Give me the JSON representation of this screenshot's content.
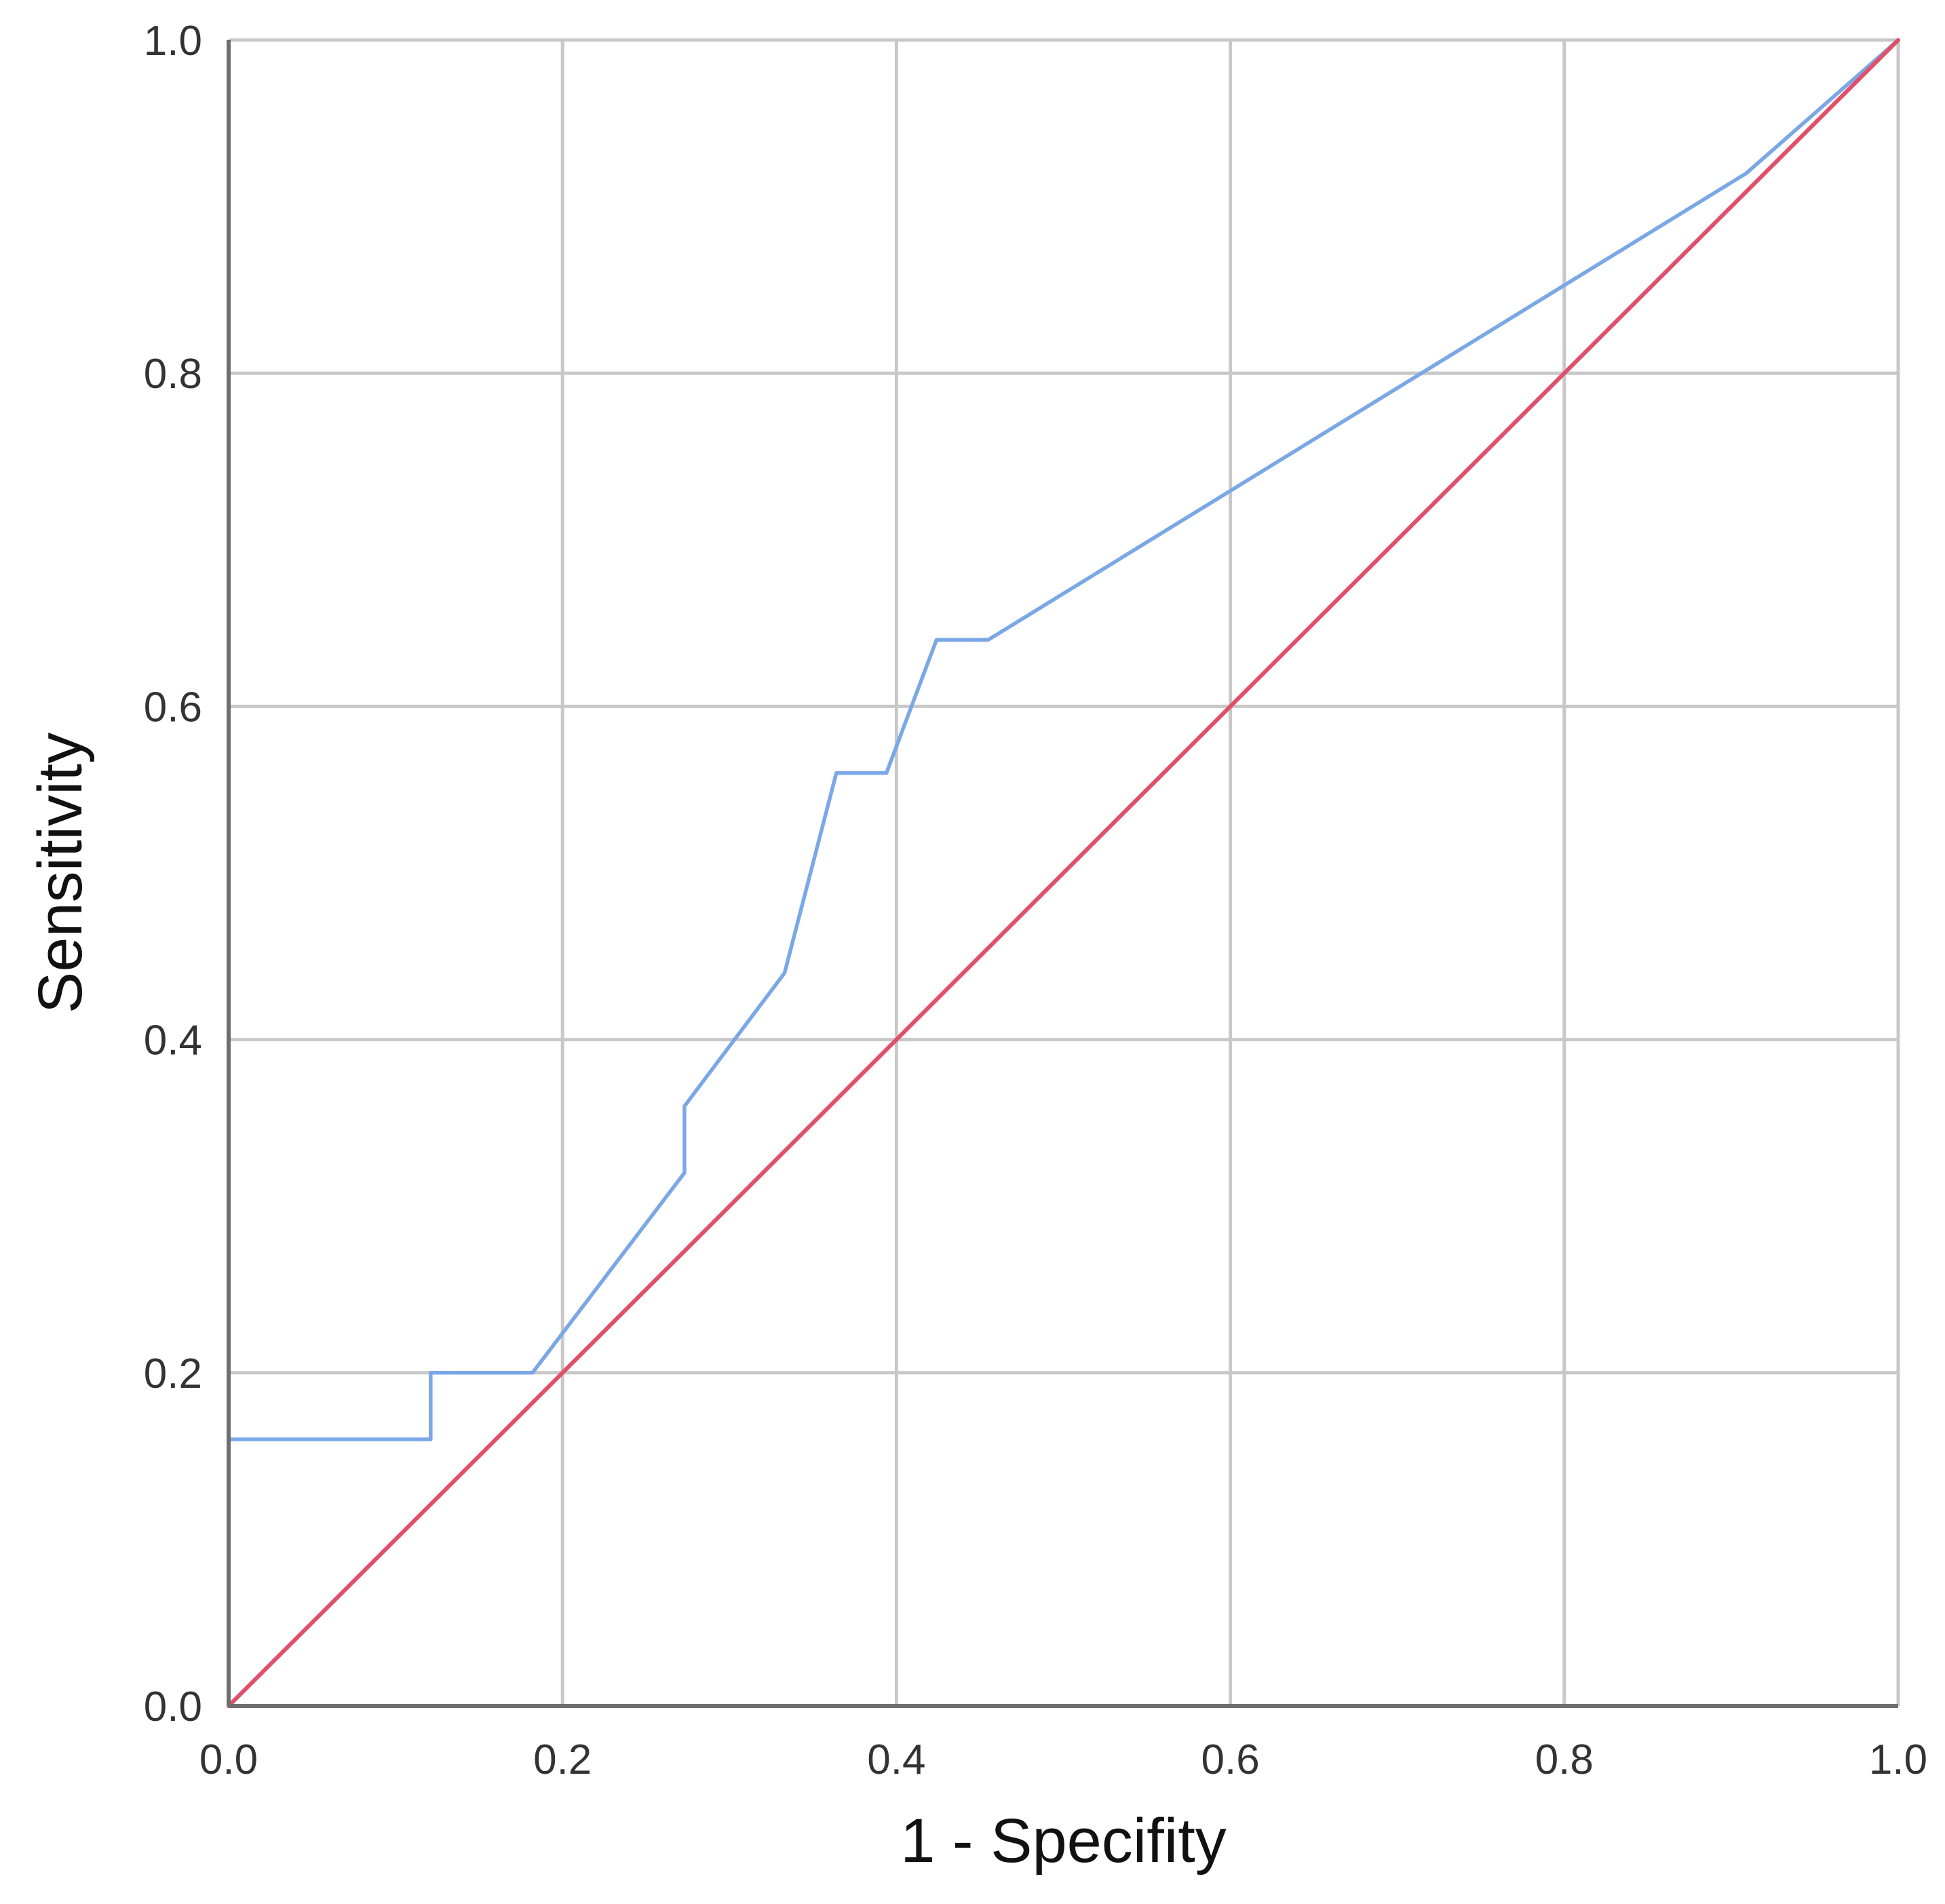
{
  "chart_data": {
    "type": "line",
    "title": "",
    "xlabel": "1 - Specifity",
    "ylabel": "Sensitivity",
    "xlim": [
      0.0,
      1.0
    ],
    "ylim": [
      0.0,
      1.0
    ],
    "x_ticks": [
      "0.0",
      "0.2",
      "0.4",
      "0.6",
      "0.8",
      "1.0"
    ],
    "y_ticks": [
      "0.0",
      "0.2",
      "0.4",
      "0.6",
      "0.8",
      "1.0"
    ],
    "grid": true,
    "legend": "none",
    "series": [
      {
        "color": "#7aa7e6",
        "x": [
          0.0,
          0.0,
          0.121,
          0.121,
          0.182,
          0.273,
          0.273,
          0.333,
          0.364,
          0.394,
          0.424,
          0.455,
          0.909,
          1.0
        ],
        "y": [
          0.0,
          0.16,
          0.16,
          0.2,
          0.2,
          0.32,
          0.36,
          0.44,
          0.56,
          0.56,
          0.64,
          0.64,
          0.92,
          1.0
        ]
      },
      {
        "color": "#e0506a",
        "x": [
          0.0,
          1.0
        ],
        "y": [
          0.0,
          1.0
        ]
      }
    ]
  }
}
